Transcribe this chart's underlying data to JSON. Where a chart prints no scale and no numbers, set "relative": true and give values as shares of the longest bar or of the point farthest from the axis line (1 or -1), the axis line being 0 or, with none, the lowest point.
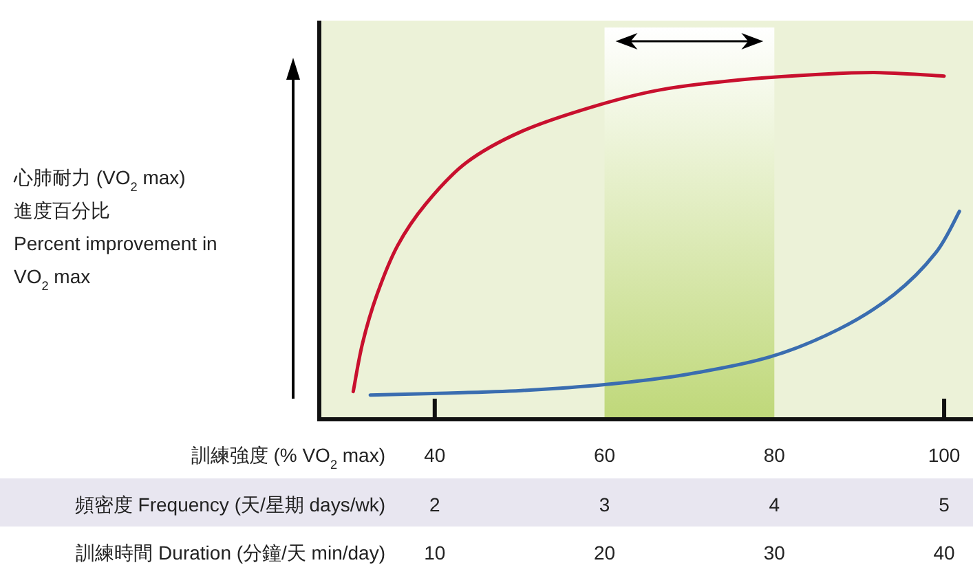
{
  "chart_data": {
    "type": "line",
    "relative": true,
    "ylabel": "心肺耐力 (VO$_{2}$ max)\n進度百分比\nPercent improvement in\nVO$_{2}$ max",
    "xlabel": "訓練強度 (% VO$_{2}$ max)",
    "xlim": [
      26.4,
      103.4
    ],
    "xticks": [
      40,
      60,
      80,
      100
    ],
    "x2label": "頻密度 Frequency (天/星期 days/wk)",
    "x2lim": [
      1.32,
      5.17
    ],
    "x2ticks": [
      2,
      3,
      4,
      5
    ],
    "annotations": [
      "訓練時間 Duration (分鐘/天 min/day)",
      "10",
      "20",
      "30",
      "40"
    ],
    "bands": [
      {
        "axis": "x",
        "from": 60,
        "to": 80,
        "color": "#bfd879"
      }
    ],
    "series": [
      {
        "color": "#c8102e",
        "x": [
          30.4,
          31.5,
          33.2,
          35.6,
          38.9,
          43.7,
          50.2,
          58.4,
          66.5,
          76.3,
          86,
          92.5,
          100
        ],
        "values": [
          0.08,
          0.22,
          0.36,
          0.5,
          0.62,
          0.74,
          0.83,
          0.9,
          0.95,
          0.98,
          0.996,
          1,
          0.99
        ]
      },
      {
        "color": "#3a6db0",
        "x": [
          32.4,
          40.5,
          50.2,
          60,
          69.8,
          79.5,
          87.6,
          94.1,
          99,
          101.8
        ],
        "values": [
          0.07,
          0.075,
          0.083,
          0.1,
          0.13,
          0.18,
          0.26,
          0.36,
          0.48,
          0.6
        ]
      }
    ]
  }
}
